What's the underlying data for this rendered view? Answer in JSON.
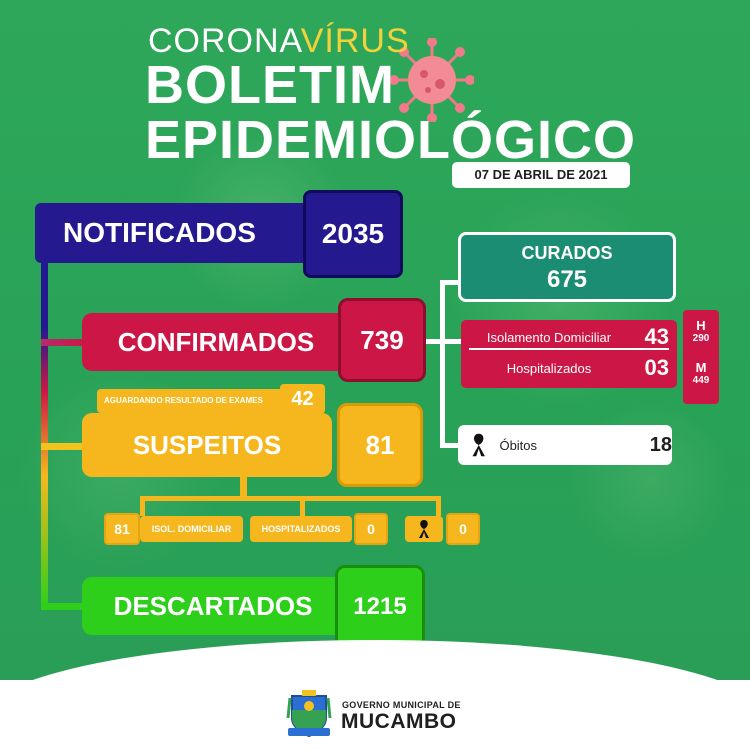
{
  "header": {
    "title_prefix": "CORONA",
    "title_accent": "VÍRUS",
    "title_line1": "BOLETIM",
    "title_line2": "EPIDEMIOLÓGICO",
    "date": "07 DE ABRIL DE 2021"
  },
  "notificados": {
    "label": "NOTIFICADOS",
    "value": "2035"
  },
  "confirmados": {
    "label": "CONFIRMADOS",
    "value": "739"
  },
  "curados": {
    "label": "CURADOS",
    "value": "675"
  },
  "confirmed_breakdown": {
    "isolamento_label": "Isolamento Domiciliar",
    "isolamento_value": "43",
    "hospitalizados_label": "Hospitalizados",
    "hospitalizados_value": "03",
    "h_label": "H",
    "h_value": "290",
    "m_label": "M",
    "m_value": "449"
  },
  "obitos": {
    "label": "Óbitos",
    "value": "18"
  },
  "aguardando": {
    "label": "AGUARDANDO RESULTADO DE EXAMES",
    "value": "42"
  },
  "suspeitos": {
    "label": "SUSPEITOS",
    "value": "81"
  },
  "suspeitos_breakdown": {
    "isol_value": "81",
    "isol_label": "ISOL. DOMICILIAR",
    "hosp_label": "HOSPITALIZADOS",
    "hosp_value": "0",
    "obitos_value": "0"
  },
  "descartados": {
    "label": "DESCARTADOS",
    "value": "1215"
  },
  "footer": {
    "gov_label": "GOVERNO MUNICIPAL DE",
    "municipio": "MUCAMBO"
  },
  "colors": {
    "background": "#2fa35a",
    "notificados": "#24198f",
    "confirmados": "#cc1746",
    "suspeitos": "#f6b71e",
    "descartados": "#2dcf1b",
    "curados": "#1b8d72"
  }
}
